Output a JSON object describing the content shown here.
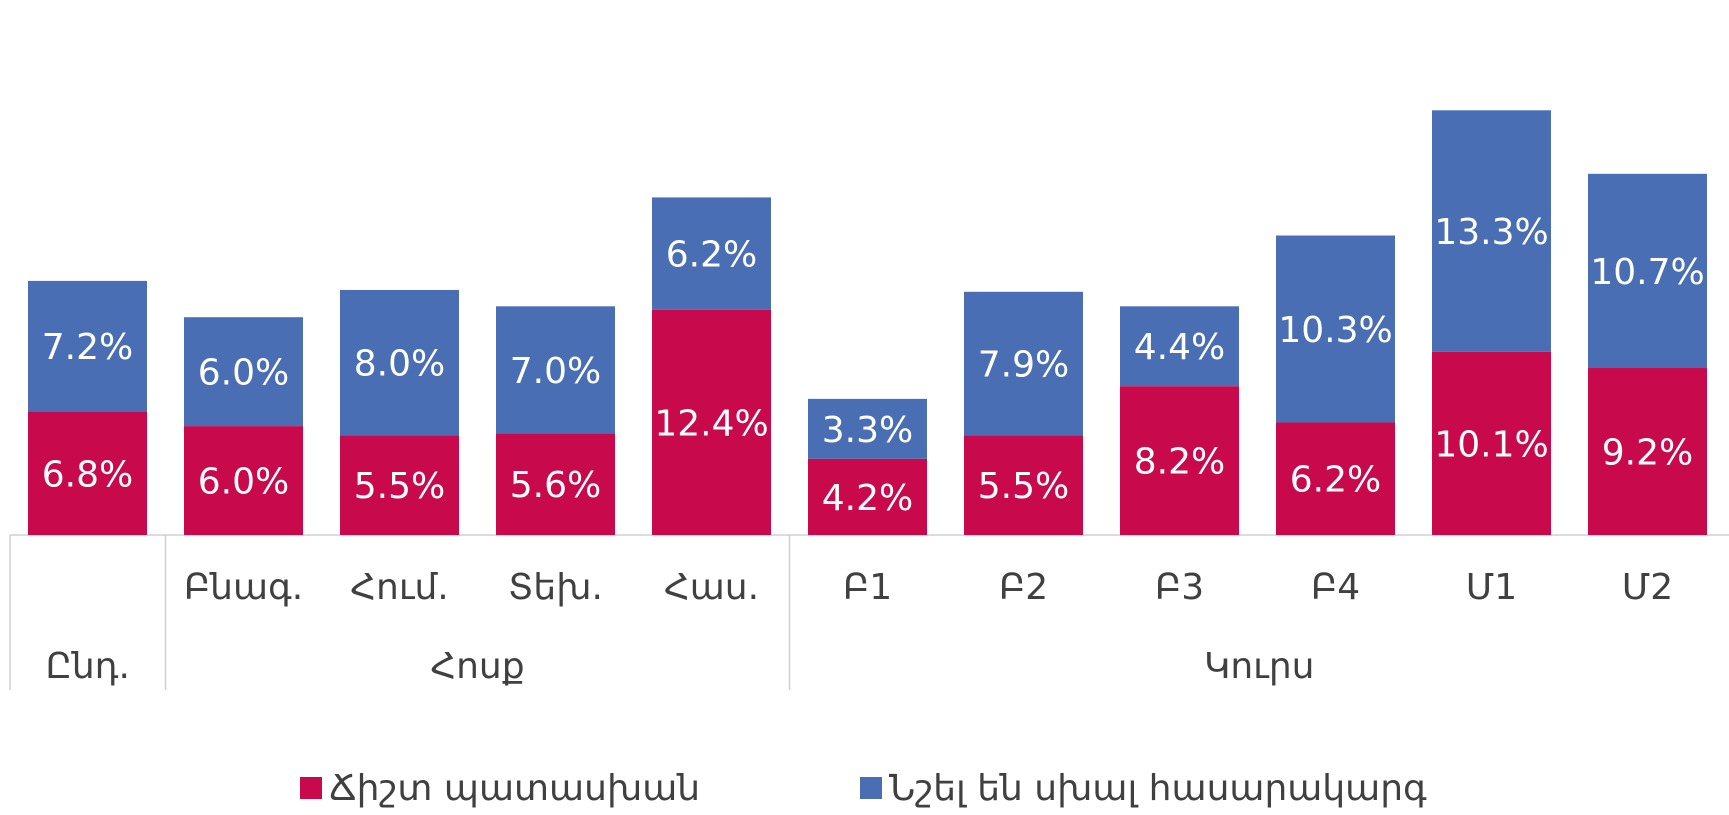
{
  "chart_data": {
    "type": "stacked_bar",
    "categories": [
      null,
      "Բնագ.",
      "Հում.",
      "Տեխ.",
      "Հաս.",
      "Բ1",
      "Բ2",
      "Բ3",
      "Բ4",
      "Մ1",
      "Մ2"
    ],
    "groups": [
      {
        "label": "Ընդ.",
        "span": 1
      },
      {
        "label": "Հոսք",
        "span": 4
      },
      {
        "label": "Կուրս",
        "span": 6
      }
    ],
    "series": [
      {
        "name": "Ճիշտ պատասխան",
        "color": "#c8094b",
        "values": [
          6.8,
          6.0,
          5.5,
          5.6,
          12.4,
          4.2,
          5.5,
          8.2,
          6.2,
          10.1,
          9.2
        ],
        "value_labels": [
          "6.8%",
          "6.0%",
          "5.5%",
          "5.6%",
          "12.4%",
          "4.2%",
          "5.5%",
          "8.2%",
          "6.2%",
          "10.1%",
          "9.2%"
        ]
      },
      {
        "name": "Նշել են սխալ հասարակարգ",
        "color": "#4a6eb4",
        "values": [
          7.2,
          6.0,
          8.0,
          7.0,
          6.2,
          3.3,
          7.9,
          4.4,
          10.3,
          13.3,
          10.7
        ],
        "value_labels": [
          "7.2%",
          "6.0%",
          "8.0%",
          "7.0%",
          "6.2%",
          "3.3%",
          "7.9%",
          "4.4%",
          "10.3%",
          "13.3%",
          "10.7%"
        ]
      }
    ],
    "legend": "bottom"
  }
}
